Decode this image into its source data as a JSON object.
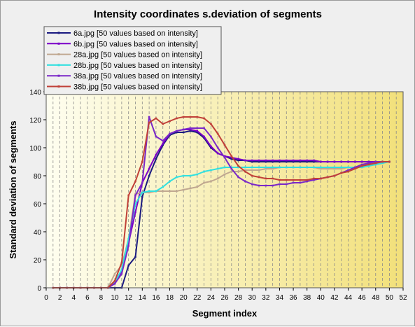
{
  "colors": {
    "background": "#efefef",
    "plot_left": "#fefef0",
    "plot_right": "#f2e07a",
    "grid": "#8a8a8a"
  },
  "chart_data": {
    "type": "line",
    "title": "Intensity coordinates s.deviation of segments",
    "xlabel": "Segment index",
    "ylabel": "Standard deviation of segments",
    "xlim": [
      0,
      52
    ],
    "ylim": [
      0,
      140
    ],
    "x_ticks": [
      "0",
      "2",
      "4",
      "6",
      "8",
      "10",
      "12",
      "14",
      "16",
      "18",
      "20",
      "22",
      "24",
      "26",
      "28",
      "30",
      "32",
      "34",
      "36",
      "38",
      "40",
      "42",
      "44",
      "46",
      "48",
      "50",
      "52"
    ],
    "y_ticks": [
      "0",
      "20",
      "40",
      "60",
      "80",
      "100",
      "120",
      "140"
    ],
    "grid": "vertical dashed",
    "legend_position": "top-left, above plot",
    "x": [
      1,
      2,
      3,
      4,
      5,
      6,
      7,
      8,
      9,
      10,
      11,
      12,
      13,
      14,
      15,
      16,
      17,
      18,
      19,
      20,
      21,
      22,
      23,
      24,
      25,
      26,
      27,
      28,
      29,
      30,
      31,
      32,
      33,
      34,
      35,
      36,
      37,
      38,
      39,
      40,
      41,
      42,
      43,
      44,
      45,
      46,
      47,
      48,
      49,
      50
    ],
    "series": [
      {
        "name": "6a.jpg [50 values based on intensity]",
        "color": "#1a1a80",
        "values": [
          0,
          0,
          0,
          0,
          0,
          0,
          0,
          0,
          0,
          0,
          0,
          16,
          22,
          65,
          80,
          92,
          102,
          109,
          111,
          111,
          112,
          111,
          107,
          100,
          96,
          94,
          92,
          91,
          91,
          90,
          90,
          90,
          90,
          90,
          90,
          90,
          90,
          90,
          90,
          90,
          90,
          90,
          90,
          90,
          90,
          90,
          90,
          90,
          90,
          90
        ]
      },
      {
        "name": "6b.jpg [50 values based on intensity]",
        "color": "#7a00c8",
        "values": [
          0,
          0,
          0,
          0,
          0,
          0,
          0,
          0,
          0,
          3,
          12,
          32,
          54,
          75,
          85,
          95,
          103,
          110,
          112,
          113,
          113,
          112,
          108,
          101,
          96,
          94,
          93,
          92,
          91,
          91,
          91,
          91,
          91,
          91,
          91,
          91,
          91,
          91,
          91,
          90,
          90,
          90,
          90,
          90,
          90,
          90,
          90,
          90,
          90,
          90
        ]
      },
      {
        "name": "28a.jpg [50 values based on intensity]",
        "color": "#c0a890",
        "values": [
          0,
          0,
          0,
          0,
          0,
          0,
          0,
          0,
          0,
          10,
          16,
          35,
          67,
          68,
          68,
          69,
          69,
          69,
          69,
          70,
          71,
          72,
          75,
          76,
          78,
          81,
          83,
          83,
          84,
          84,
          84,
          85,
          85,
          86,
          86,
          86,
          86,
          86,
          86,
          85,
          85,
          85,
          85,
          86,
          86,
          87,
          88,
          89,
          90,
          90
        ]
      },
      {
        "name": "28b.jpg [50 values based on intensity]",
        "color": "#30e0e0",
        "values": [
          0,
          0,
          0,
          0,
          0,
          0,
          0,
          0,
          0,
          4,
          13,
          35,
          60,
          68,
          69,
          69,
          72,
          76,
          79,
          80,
          80,
          81,
          83,
          84,
          85,
          86,
          86,
          86,
          86,
          86,
          86,
          86,
          86,
          86,
          86,
          86,
          86,
          86,
          86,
          86,
          86,
          86,
          86,
          86,
          86,
          86,
          87,
          88,
          89,
          90
        ]
      },
      {
        "name": "38a.jpg [50 values based on intensity]",
        "color": "#7a28c8",
        "values": [
          0,
          0,
          0,
          0,
          0,
          0,
          0,
          0,
          0,
          3,
          10,
          30,
          66,
          75,
          122,
          108,
          105,
          110,
          112,
          113,
          114,
          114,
          114,
          108,
          100,
          93,
          85,
          79,
          76,
          74,
          73,
          73,
          73,
          74,
          74,
          75,
          75,
          76,
          77,
          78,
          79,
          80,
          82,
          84,
          86,
          88,
          89,
          90,
          90,
          90
        ]
      },
      {
        "name": "38b.jpg [50 values based on intensity]",
        "color": "#c04038",
        "values": [
          0,
          0,
          0,
          0,
          0,
          0,
          0,
          0,
          0,
          5,
          18,
          66,
          76,
          90,
          118,
          121,
          117,
          119,
          121,
          122,
          122,
          122,
          121,
          117,
          110,
          102,
          94,
          87,
          83,
          80,
          79,
          78,
          78,
          77,
          77,
          77,
          77,
          77,
          78,
          78,
          79,
          80,
          82,
          83,
          85,
          87,
          88,
          89,
          90,
          90
        ]
      }
    ]
  }
}
